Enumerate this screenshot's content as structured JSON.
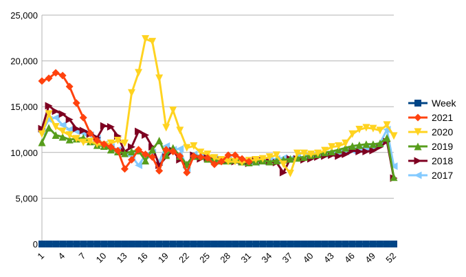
{
  "chart_data": {
    "type": "line",
    "title": "",
    "xlabel": "",
    "ylabel": "",
    "x": [
      1,
      2,
      3,
      4,
      5,
      6,
      7,
      8,
      9,
      10,
      11,
      12,
      13,
      14,
      15,
      16,
      17,
      18,
      19,
      20,
      21,
      22,
      23,
      24,
      25,
      26,
      27,
      28,
      29,
      30,
      31,
      32,
      33,
      34,
      35,
      36,
      37,
      38,
      39,
      40,
      41,
      42,
      43,
      44,
      45,
      46,
      47,
      48,
      49,
      50,
      51,
      52
    ],
    "x_tick_labels": [
      "1",
      "4",
      "7",
      "10",
      "13",
      "16",
      "19",
      "22",
      "25",
      "28",
      "31",
      "34",
      "37",
      "40",
      "43",
      "46",
      "49",
      "52"
    ],
    "ylim": [
      0,
      25000
    ],
    "y_tick_labels": [
      "0",
      "5,000",
      "10,000",
      "15,000",
      "20,000",
      "25,000"
    ],
    "grid": "horizontal",
    "legend_position": "right",
    "series": [
      {
        "name": "Week",
        "color": "#004586",
        "marker": "square",
        "values": [
          0,
          0,
          0,
          0,
          0,
          0,
          0,
          0,
          0,
          0,
          0,
          0,
          0,
          0,
          0,
          0,
          0,
          0,
          0,
          0,
          0,
          0,
          0,
          0,
          0,
          0,
          0,
          0,
          0,
          0,
          0,
          0,
          0,
          0,
          0,
          0,
          0,
          0,
          0,
          0,
          0,
          0,
          0,
          0,
          0,
          0,
          0,
          0,
          0,
          0,
          0,
          0
        ]
      },
      {
        "name": "2021",
        "color": "#ff420e",
        "marker": "diamond",
        "values": [
          17800,
          18100,
          18700,
          18400,
          17200,
          15400,
          13800,
          12100,
          11300,
          10900,
          10600,
          10200,
          8200,
          9200,
          10300,
          9800,
          9500,
          8000,
          10300,
          10100,
          9600,
          7800,
          9600,
          9500,
          9400,
          8700,
          9000,
          9700,
          9700,
          9300,
          9000,
          null,
          null,
          null,
          null,
          null,
          null,
          null,
          null,
          null,
          null,
          null,
          null,
          null,
          null,
          null,
          null,
          null,
          null,
          null,
          null,
          null
        ]
      },
      {
        "name": "2020",
        "color": "#ffd320",
        "marker": "triangle-down",
        "values": [
          12000,
          14200,
          12800,
          12300,
          11900,
          11500,
          11100,
          11200,
          10900,
          10800,
          11000,
          11300,
          11000,
          16500,
          18700,
          22400,
          22100,
          18100,
          12700,
          14600,
          12400,
          10500,
          10700,
          10000,
          9800,
          9400,
          9200,
          9000,
          9000,
          8900,
          9100,
          9200,
          9300,
          9500,
          9700,
          8700,
          7700,
          9900,
          9900,
          9800,
          9900,
          10200,
          10600,
          10700,
          11000,
          12000,
          12500,
          12700,
          12600,
          12400,
          13000,
          11800
        ]
      },
      {
        "name": "2019",
        "color": "#579d1c",
        "marker": "triangle-up",
        "values": [
          11100,
          12700,
          11900,
          11700,
          11400,
          11500,
          11600,
          11200,
          10800,
          10700,
          10300,
          10100,
          9900,
          10100,
          10200,
          9100,
          10300,
          11300,
          9700,
          10500,
          9600,
          8700,
          9600,
          9600,
          9300,
          9200,
          9100,
          9100,
          9200,
          9000,
          8900,
          9000,
          9100,
          9000,
          9100,
          9200,
          9300,
          9400,
          9500,
          9700,
          9800,
          10000,
          10100,
          10300,
          10500,
          10700,
          10800,
          10900,
          10900,
          11000,
          11600,
          7300
        ]
      },
      {
        "name": "2018",
        "color": "#7e0021",
        "marker": "triangle-right",
        "values": [
          12600,
          15100,
          14500,
          14200,
          13600,
          12600,
          12400,
          12000,
          11600,
          12900,
          12800,
          11800,
          10100,
          10600,
          12300,
          11900,
          10600,
          8600,
          9500,
          10200,
          9200,
          8700,
          9700,
          9300,
          9400,
          9200,
          9200,
          9100,
          9000,
          9000,
          8800,
          9200,
          9100,
          9000,
          8900,
          7800,
          9300,
          9300,
          9200,
          9300,
          9500,
          9600,
          9700,
          9600,
          9800,
          10200,
          10100,
          10100,
          10200,
          10600,
          11200,
          7200
        ]
      },
      {
        "name": "2017",
        "color": "#83caff",
        "marker": "triangle-left",
        "values": [
          12200,
          13600,
          13800,
          13000,
          12500,
          12300,
          12100,
          11900,
          11500,
          10900,
          10600,
          10300,
          9900,
          9600,
          8600,
          9700,
          10000,
          9000,
          10700,
          10300,
          10400,
          8200,
          9800,
          9600,
          9400,
          9300,
          9100,
          9200,
          9100,
          9000,
          9000,
          8900,
          9000,
          9200,
          9300,
          9400,
          9300,
          9500,
          9500,
          9600,
          9700,
          9800,
          9900,
          10000,
          10100,
          10200,
          10300,
          10500,
          10600,
          11000,
          12500,
          8500
        ]
      }
    ]
  }
}
